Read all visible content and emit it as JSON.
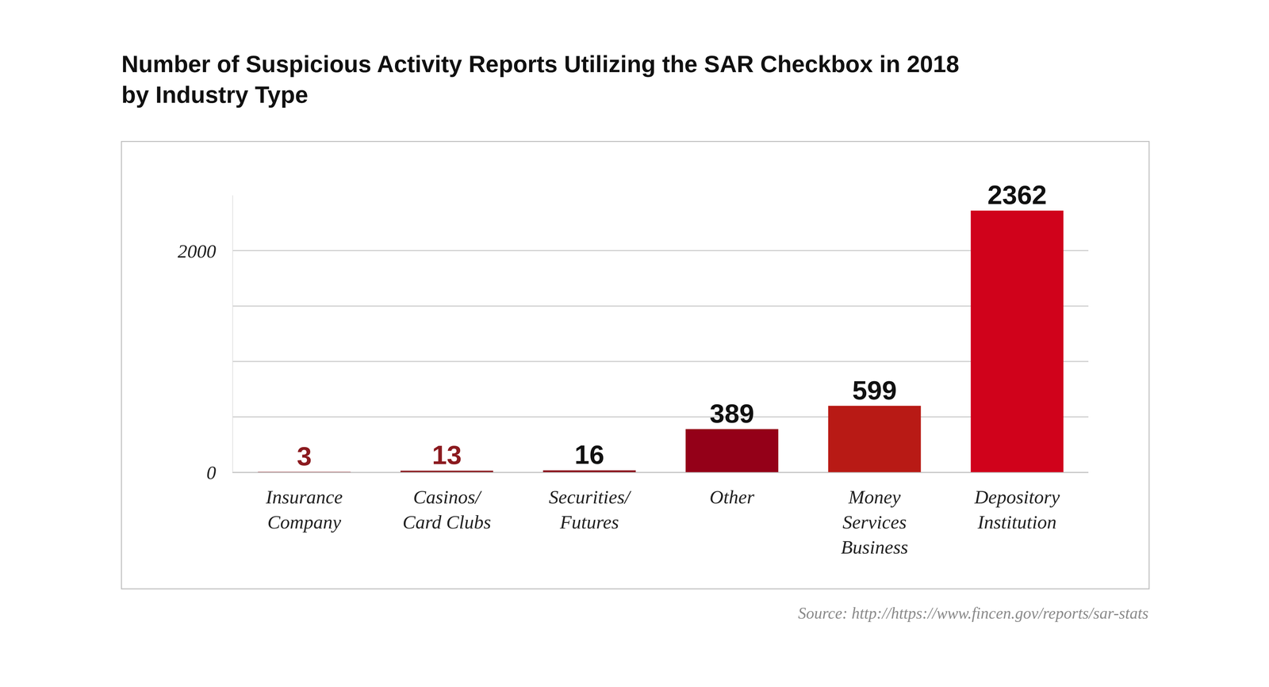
{
  "chart_data": {
    "type": "bar",
    "title": "Number of Suspicious Activity Reports Utilizing the SAR Checkbox in 2018\nby Industry Type",
    "categories": [
      "Insurance\nCompany",
      "Casinos/\nCard Clubs",
      "Securities/\nFutures",
      "Other",
      "Money\nServices\nBusiness",
      "Depository\nInstitution"
    ],
    "values": [
      3,
      13,
      16,
      389,
      599,
      2362
    ],
    "colors": [
      "#8b1a1f",
      "#8b1a1f",
      "#8a0c1a",
      "#940018",
      "#b81a15",
      "#d0021b"
    ],
    "ylim": [
      0,
      2500
    ],
    "yticks": [
      0,
      {
        "value": 500,
        "label": null
      },
      {
        "value": 1000,
        "label": null
      },
      {
        "value": 1500,
        "label": null
      },
      2000
    ],
    "grid": true,
    "data_labels": true,
    "source": "Source: http://https://www.fincen.gov/reports/sar-stats"
  }
}
